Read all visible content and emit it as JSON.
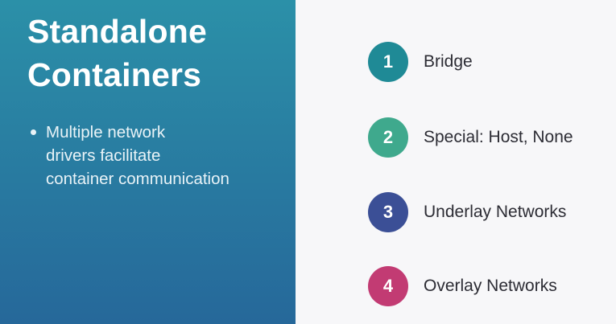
{
  "slide": {
    "title_line1": "Standalone",
    "title_line2": "Containers",
    "bullet_line1": "Multiple network",
    "bullet_line2": "drivers facilitate",
    "bullet_line3": "container communication"
  },
  "items": [
    {
      "number": "1",
      "label": "Bridge",
      "color": "#1f8a96"
    },
    {
      "number": "2",
      "label": "Special: Host, None",
      "color": "#3fa98d"
    },
    {
      "number": "3",
      "label": "Underlay Networks",
      "color": "#3b4f96"
    },
    {
      "number": "4",
      "label": "Overlay Networks",
      "color": "#c23b73"
    }
  ],
  "colors": {
    "left_panel_top": "#2b90a8",
    "left_panel_bottom": "#26689a",
    "right_panel_bg": "#f7f7f9"
  }
}
